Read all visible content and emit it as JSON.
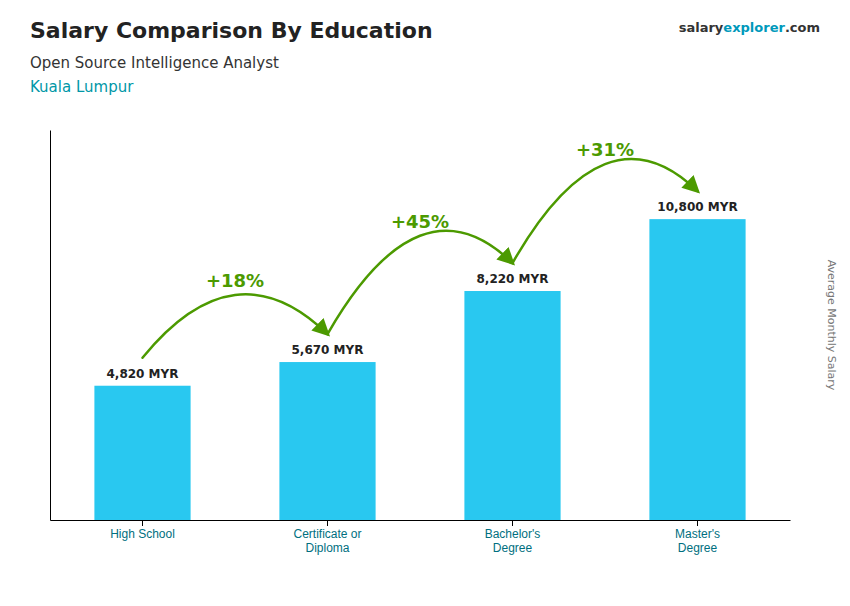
{
  "chart_data": {
    "type": "bar",
    "title": "Salary Comparison By Education",
    "subtitle": "Open Source Intelligence Analyst",
    "location": "Kuala Lumpur",
    "brand": [
      "salary",
      "explorer",
      ".com"
    ],
    "ylabel": "Average Monthly Salary",
    "categories": [
      "High School",
      "Certificate or\nDiploma",
      "Bachelor's\nDegree",
      "Master's\nDegree"
    ],
    "values": [
      4820,
      5670,
      8220,
      10800
    ],
    "value_labels": [
      "4,820 MYR",
      "5,670 MYR",
      "8,220 MYR",
      "10,800 MYR"
    ],
    "data_labels": true,
    "annotations": [
      "+18%",
      "+45%",
      "+31%"
    ],
    "color": "#29c8f0",
    "ylim": [
      0,
      14000
    ],
    "tick_labels": "x",
    "grid": false
  }
}
